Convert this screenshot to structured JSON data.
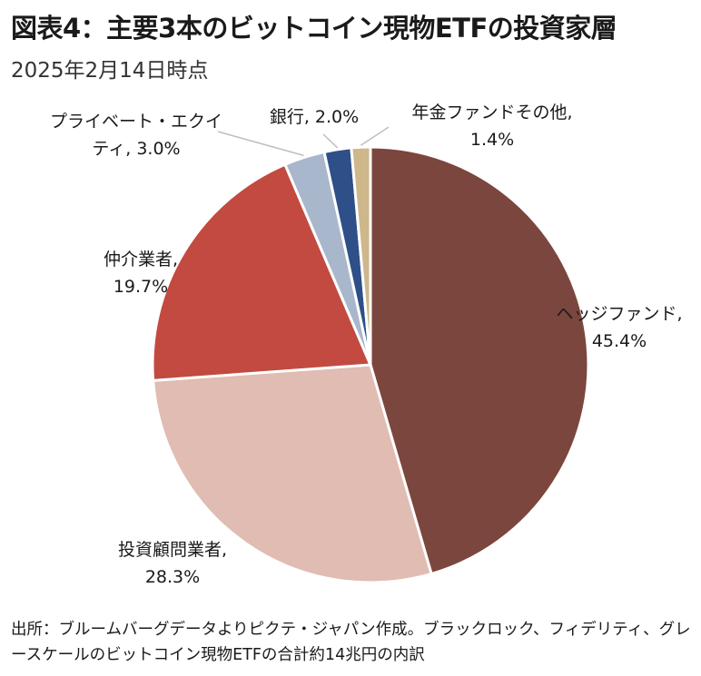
{
  "header": {
    "title": "図表4：主要3本のビットコイン現物ETFの投資家層",
    "subtitle": "2025年2月14日時点"
  },
  "chart_data": {
    "type": "pie",
    "title": "図表4：主要3本のビットコイン現物ETFの投資家層",
    "subtitle": "2025年2月14日時点",
    "slices": [
      {
        "name": "ヘッジファンド",
        "value": 45.4,
        "display": "45.4%",
        "color": "#7b463d"
      },
      {
        "name": "投資顧問業者",
        "value": 28.3,
        "display": "28.3%",
        "color": "#e0bcb3"
      },
      {
        "name": "仲介業者",
        "value": 19.7,
        "display": "19.7%",
        "color": "#c24a40"
      },
      {
        "name": "プライベート・エクイティ",
        "value": 3.0,
        "display": "3.0%",
        "color": "#a9b7cc"
      },
      {
        "name": "銀行",
        "value": 2.0,
        "display": "2.0%",
        "color": "#2e4f87"
      },
      {
        "name": "年金ファンドその他",
        "value": 1.4,
        "display": "1.4%",
        "color": "#cdb78b"
      }
    ],
    "start_angle": "12 o'clock",
    "direction": "clockwise"
  },
  "source": {
    "text": "出所：ブルームバーグデータよりピクテ・ジャパン作成。ブラックロック、フィデリティ、グレースケールのビットコイン現物ETFの合計約14兆円の内訳"
  }
}
